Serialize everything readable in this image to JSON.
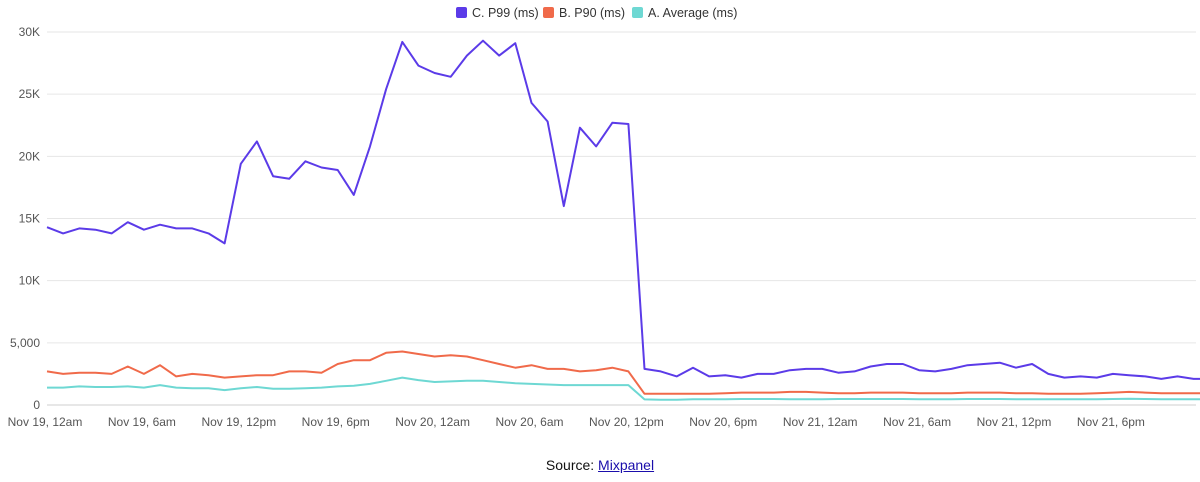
{
  "chart_data": {
    "type": "line",
    "title": "",
    "xlabel": "",
    "ylabel": "",
    "ylim": [
      0,
      30000
    ],
    "y_ticks": [
      0,
      5000,
      10000,
      15000,
      20000,
      25000,
      30000
    ],
    "y_tick_labels": [
      "0",
      "5,000",
      "10K",
      "15K",
      "20K",
      "25K",
      "30K"
    ],
    "x_tick_labels": [
      "Nov 19, 12am",
      "Nov 19, 6am",
      "Nov 19, 12pm",
      "Nov 19, 6pm",
      "Nov 20, 12am",
      "Nov 20, 6am",
      "Nov 20, 12pm",
      "Nov 20, 6pm",
      "Nov 21, 12am",
      "Nov 21, 6am",
      "Nov 21, 12pm",
      "Nov 21, 6pm"
    ],
    "x_interval_hours": 1,
    "grid": "horizontal",
    "legend_position": "top-center",
    "series": [
      {
        "name": "C. P99 (ms)",
        "color": "#5b3be8",
        "values": [
          14300,
          13800,
          14200,
          14100,
          13800,
          14700,
          14100,
          14500,
          14200,
          14200,
          13800,
          13000,
          19400,
          21200,
          18400,
          18200,
          19600,
          19100,
          18900,
          16900,
          20800,
          25400,
          29200,
          27300,
          26700,
          26400,
          28100,
          29300,
          28100,
          29100,
          24300,
          22800,
          16000,
          22300,
          20800,
          22700,
          22600,
          2900,
          2700,
          2300,
          3000,
          2300,
          2400,
          2200,
          2500,
          2500,
          2800,
          2900,
          2900,
          2600,
          2700,
          3100,
          3300,
          3300,
          2800,
          2700,
          2900,
          3200,
          3300,
          3400,
          3000,
          3300,
          2500,
          2200,
          2300,
          2200,
          2500,
          2400,
          2300,
          2100,
          2300,
          2100,
          2100
        ]
      },
      {
        "name": "B. P90 (ms)",
        "color": "#f06a4a",
        "values": [
          2700,
          2500,
          2600,
          2600,
          2500,
          3100,
          2500,
          3200,
          2300,
          2500,
          2400,
          2200,
          2300,
          2400,
          2400,
          2700,
          2700,
          2600,
          3300,
          3600,
          3600,
          4200,
          4300,
          4100,
          3900,
          4000,
          3900,
          3600,
          3300,
          3000,
          3200,
          2900,
          2900,
          2700,
          2800,
          3000,
          2700,
          900,
          900,
          900,
          900,
          900,
          950,
          1000,
          1000,
          1000,
          1050,
          1050,
          1000,
          950,
          950,
          1000,
          1000,
          1000,
          950,
          950,
          950,
          1000,
          1000,
          1000,
          950,
          950,
          900,
          900,
          900,
          950,
          1000,
          1050,
          1000,
          950,
          950,
          950,
          950
        ]
      },
      {
        "name": "A. Average (ms)",
        "color": "#6ed8d3",
        "values": [
          1400,
          1400,
          1500,
          1450,
          1450,
          1500,
          1400,
          1600,
          1400,
          1350,
          1350,
          1200,
          1350,
          1450,
          1300,
          1300,
          1350,
          1400,
          1500,
          1550,
          1700,
          1950,
          2200,
          2000,
          1850,
          1900,
          1950,
          1950,
          1850,
          1750,
          1700,
          1650,
          1600,
          1600,
          1600,
          1600,
          1600,
          450,
          430,
          430,
          460,
          460,
          460,
          480,
          480,
          480,
          470,
          470,
          470,
          480,
          480,
          480,
          480,
          480,
          470,
          460,
          470,
          480,
          480,
          480,
          470,
          470,
          460,
          460,
          460,
          470,
          480,
          500,
          480,
          460,
          460,
          460,
          460
        ]
      }
    ]
  },
  "source": {
    "label": "Source: ",
    "link_text": "Mixpanel"
  }
}
